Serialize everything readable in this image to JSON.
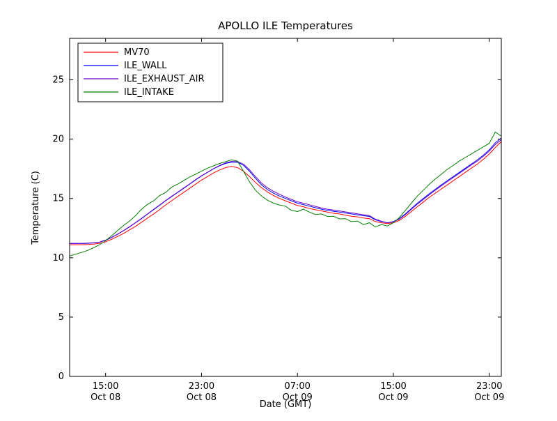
{
  "chart_data": {
    "type": "line",
    "title": "APOLLO ILE Temperatures",
    "xlabel": "Date (GMT)",
    "ylabel": "Temperature (C)",
    "xlim": [
      0,
      36
    ],
    "ylim": [
      0,
      28.5
    ],
    "x_axis_note": "hours since Oct 08 12:00 GMT",
    "grid": false,
    "legend_position": "upper-left",
    "x_ticks": [
      {
        "v": 3,
        "time": "15:00",
        "date": "Oct 08"
      },
      {
        "v": 11,
        "time": "23:00",
        "date": "Oct 08"
      },
      {
        "v": 19,
        "time": "07:00",
        "date": "Oct 09"
      },
      {
        "v": 27,
        "time": "15:00",
        "date": "Oct 09"
      },
      {
        "v": 35,
        "time": "23:00",
        "date": "Oct 09"
      }
    ],
    "y_ticks": [
      0,
      5,
      10,
      15,
      20,
      25
    ],
    "x": {
      "start": 0,
      "step": 0.5,
      "count": 73
    },
    "series": [
      {
        "name": "MV70",
        "color": "#ff0000",
        "values": [
          11.1,
          11.1,
          11.1,
          11.12,
          11.15,
          11.22,
          11.35,
          11.55,
          11.8,
          12.05,
          12.35,
          12.65,
          13.0,
          13.35,
          13.7,
          14.05,
          14.45,
          14.8,
          15.15,
          15.5,
          15.85,
          16.2,
          16.55,
          16.85,
          17.15,
          17.4,
          17.6,
          17.7,
          17.6,
          17.3,
          16.85,
          16.35,
          15.9,
          15.55,
          15.25,
          15.0,
          14.8,
          14.6,
          14.4,
          14.3,
          14.15,
          14.05,
          13.95,
          13.85,
          13.75,
          13.7,
          13.6,
          13.5,
          13.45,
          13.35,
          13.3,
          13.05,
          12.95,
          12.88,
          12.95,
          13.15,
          13.5,
          13.9,
          14.3,
          14.7,
          15.1,
          15.45,
          15.8,
          16.15,
          16.5,
          16.85,
          17.2,
          17.55,
          17.9,
          18.3,
          18.75,
          19.3,
          19.8
        ]
      },
      {
        "name": "ILE_WALL",
        "color": "#0000ff",
        "values": [
          11.2,
          11.2,
          11.2,
          11.22,
          11.25,
          11.32,
          11.48,
          11.7,
          11.98,
          12.28,
          12.6,
          12.95,
          13.3,
          13.68,
          14.05,
          14.42,
          14.8,
          15.15,
          15.5,
          15.85,
          16.2,
          16.55,
          16.9,
          17.2,
          17.5,
          17.75,
          17.95,
          18.05,
          18.05,
          17.8,
          17.3,
          16.7,
          16.15,
          15.75,
          15.45,
          15.2,
          15.0,
          14.8,
          14.6,
          14.48,
          14.35,
          14.22,
          14.1,
          14.0,
          13.92,
          13.85,
          13.78,
          13.7,
          13.62,
          13.55,
          13.48,
          13.2,
          13.05,
          12.95,
          13.05,
          13.3,
          13.7,
          14.15,
          14.6,
          15.0,
          15.4,
          15.78,
          16.15,
          16.5,
          16.85,
          17.2,
          17.55,
          17.9,
          18.25,
          18.65,
          19.1,
          19.7,
          20.1
        ]
      },
      {
        "name": "ILE_EXHAUST_AIR",
        "color": "#6600cc",
        "values": [
          11.22,
          11.22,
          11.22,
          11.24,
          11.27,
          11.33,
          11.5,
          11.72,
          12.0,
          12.3,
          12.62,
          12.97,
          13.32,
          13.7,
          14.08,
          14.45,
          14.82,
          15.18,
          15.52,
          15.88,
          16.22,
          16.58,
          16.92,
          17.22,
          17.52,
          17.78,
          18.0,
          18.12,
          18.1,
          17.9,
          17.42,
          16.85,
          16.3,
          15.9,
          15.6,
          15.35,
          15.12,
          14.92,
          14.72,
          14.6,
          14.47,
          14.33,
          14.2,
          14.1,
          14.02,
          13.95,
          13.87,
          13.79,
          13.71,
          13.63,
          13.55,
          13.25,
          13.08,
          12.95,
          13.02,
          13.26,
          13.64,
          14.08,
          14.52,
          14.92,
          15.32,
          15.7,
          16.06,
          16.42,
          16.77,
          17.12,
          17.47,
          17.82,
          18.15,
          18.55,
          19.0,
          19.55,
          19.95
        ]
      },
      {
        "name": "ILE_INTAKE",
        "color": "#007f00",
        "values": [
          10.15,
          10.3,
          10.45,
          10.62,
          10.85,
          11.1,
          11.45,
          11.85,
          12.3,
          12.72,
          13.1,
          13.55,
          14.1,
          14.5,
          14.8,
          15.25,
          15.5,
          15.95,
          16.2,
          16.5,
          16.8,
          17.05,
          17.3,
          17.55,
          17.75,
          17.95,
          18.1,
          18.25,
          18.15,
          17.3,
          16.4,
          15.7,
          15.2,
          14.85,
          14.6,
          14.45,
          14.35,
          14.0,
          13.9,
          14.1,
          13.85,
          13.65,
          13.7,
          13.48,
          13.5,
          13.28,
          13.3,
          13.05,
          13.1,
          12.8,
          12.95,
          12.6,
          12.8,
          12.68,
          12.95,
          13.4,
          14.0,
          14.6,
          15.2,
          15.7,
          16.2,
          16.65,
          17.05,
          17.45,
          17.8,
          18.15,
          18.45,
          18.75,
          19.05,
          19.35,
          19.65,
          20.6,
          20.25
        ]
      }
    ]
  }
}
